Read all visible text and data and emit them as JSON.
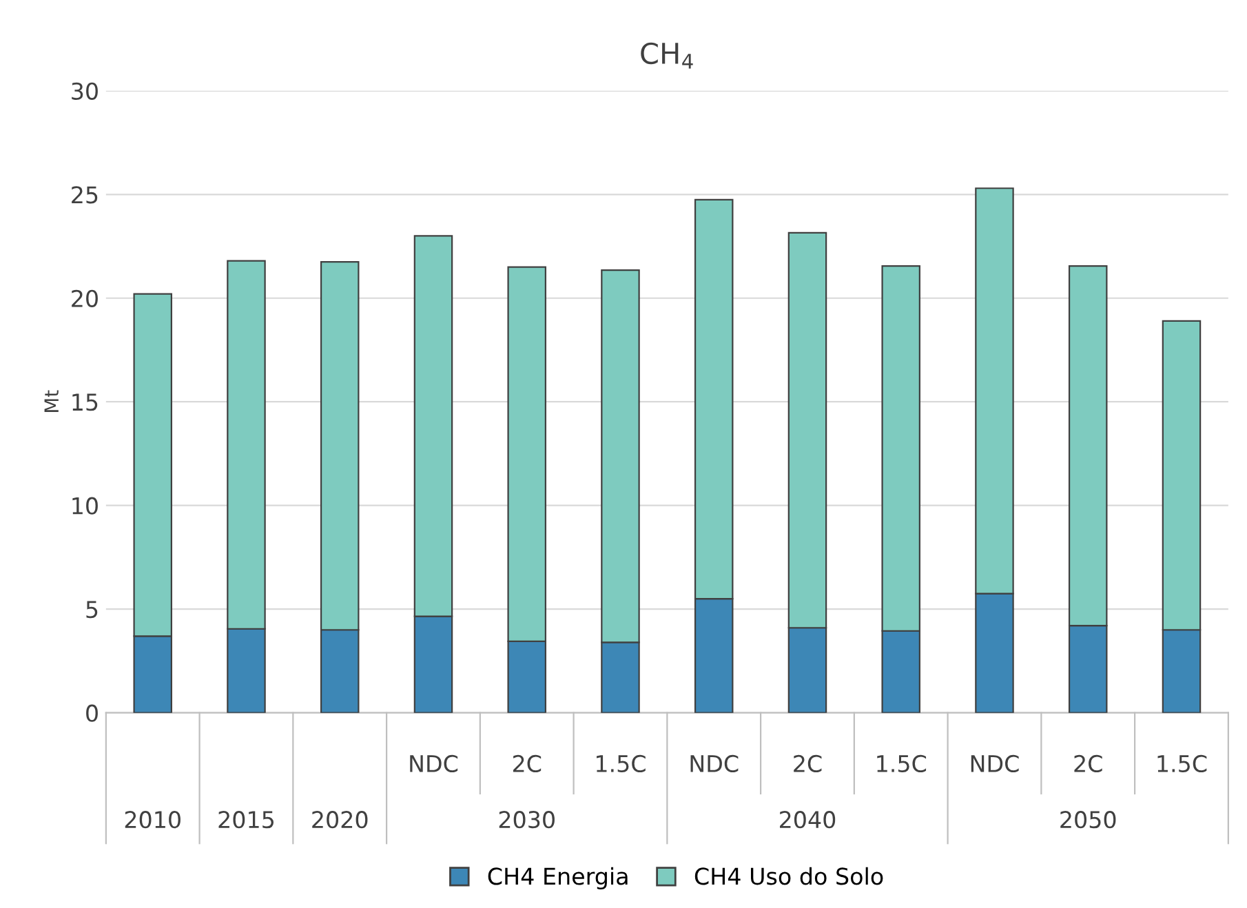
{
  "chart_data": {
    "type": "bar",
    "title": "CH$_{4}$",
    "ylabel": "Mt",
    "stacked": true,
    "categories": [
      null,
      null,
      null,
      "NDC",
      "2C",
      "1.5C",
      "NDC",
      "2C",
      "1.5C",
      "NDC",
      "2C",
      "1.5C"
    ],
    "annotations": [
      "2010",
      "2015",
      "2020",
      "2030",
      "2040",
      "2050"
    ],
    "series": [
      {
        "name": "CH4 Energia",
        "color": "#3d87b6",
        "values": [
          3.7,
          4.05,
          4.0,
          4.65,
          3.45,
          3.4,
          5.5,
          4.1,
          3.95,
          5.75,
          4.2,
          4.0
        ]
      },
      {
        "name": "CH4 Uso do Solo",
        "color": "#7ecbbf",
        "values": [
          16.5,
          17.75,
          17.75,
          18.35,
          18.05,
          17.95,
          19.25,
          19.05,
          17.6,
          19.55,
          17.35,
          14.9
        ]
      }
    ],
    "ylim": [
      0,
      30
    ],
    "yticks": [
      0,
      5,
      10,
      15,
      20,
      25,
      30
    ],
    "grid": "y",
    "legend": "bottom"
  }
}
